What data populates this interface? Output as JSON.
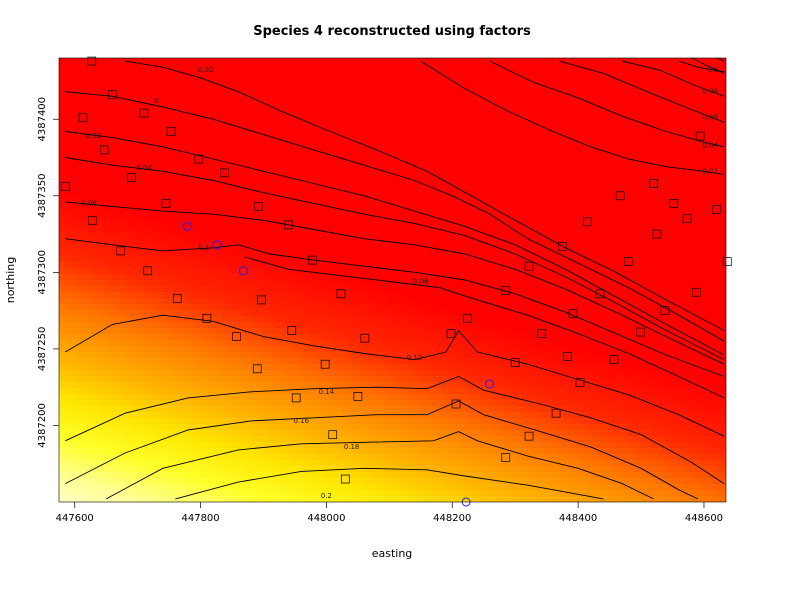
{
  "chart_data": {
    "type": "heatmap",
    "title": "Species 4 reconstructed using factors",
    "xlabel": "easting",
    "ylabel": "northing",
    "xlim": [
      447575,
      448635
    ],
    "ylim": [
      4387150,
      4387440
    ],
    "xticks": [
      447600,
      447800,
      448000,
      448200,
      448400,
      448600
    ],
    "yticks": [
      4387200,
      4387250,
      4387300,
      4387350,
      4387400
    ],
    "colors": {
      "low": "#ff0000",
      "mid": "#ffa500",
      "high": "#ffff00",
      "highest": "#ffffe0"
    },
    "contours": [
      {
        "level": "0.2",
        "points": [
          [
            447760,
            4387152
          ],
          [
            447860,
            4387163
          ],
          [
            447960,
            4387170
          ],
          [
            448060,
            4387172
          ],
          [
            448160,
            4387171
          ],
          [
            448220,
            4387167
          ],
          [
            448320,
            4387161
          ],
          [
            448400,
            4387155
          ],
          [
            448440,
            4387152
          ]
        ],
        "label_at": [
          448000,
          4387154
        ]
      },
      {
        "level": "0.18",
        "points": [
          [
            447650,
            4387152
          ],
          [
            447740,
            4387172
          ],
          [
            447860,
            4387184
          ],
          [
            447960,
            4387188
          ],
          [
            448060,
            4387189
          ],
          [
            448170,
            4387190
          ],
          [
            448210,
            4387196
          ],
          [
            448240,
            4387190
          ],
          [
            448320,
            4387180
          ],
          [
            448400,
            4387172
          ],
          [
            448470,
            4387162
          ],
          [
            448520,
            4387152
          ]
        ],
        "label_at": [
          448040,
          4387186
        ]
      },
      {
        "level": "0.16",
        "points": [
          [
            447585,
            4387162
          ],
          [
            447680,
            4387182
          ],
          [
            447780,
            4387197
          ],
          [
            447880,
            4387203
          ],
          [
            447980,
            4387205
          ],
          [
            448080,
            4387207
          ],
          [
            448160,
            4387207
          ],
          [
            448210,
            4387216
          ],
          [
            448250,
            4387207
          ],
          [
            448340,
            4387196
          ],
          [
            448420,
            4387186
          ],
          [
            448500,
            4387172
          ],
          [
            448560,
            4387158
          ],
          [
            448590,
            4387152
          ]
        ],
        "label_at": [
          447960,
          4387203
        ]
      },
      {
        "level": "0.14",
        "points": [
          [
            447585,
            4387190
          ],
          [
            447680,
            4387208
          ],
          [
            447780,
            4387218
          ],
          [
            447880,
            4387222
          ],
          [
            447980,
            4387224
          ],
          [
            448080,
            4387225
          ],
          [
            448160,
            4387224
          ],
          [
            448210,
            4387232
          ],
          [
            448250,
            4387223
          ],
          [
            448340,
            4387214
          ],
          [
            448420,
            4387205
          ],
          [
            448500,
            4387194
          ],
          [
            448580,
            4387176
          ],
          [
            448632,
            4387162
          ]
        ],
        "label_at": [
          448000,
          4387222
        ]
      },
      {
        "level": "0.12",
        "points": [
          [
            447585,
            4387248
          ],
          [
            447660,
            4387266
          ],
          [
            447740,
            4387272
          ],
          [
            447820,
            4387268
          ],
          [
            447900,
            4387258
          ],
          [
            447980,
            4387252
          ],
          [
            448060,
            4387247
          ],
          [
            448140,
            4387243
          ],
          [
            448190,
            4387248
          ],
          [
            448210,
            4387262
          ],
          [
            448240,
            4387248
          ],
          [
            448320,
            4387240
          ],
          [
            448400,
            4387230
          ],
          [
            448480,
            4387220
          ],
          [
            448560,
            4387207
          ],
          [
            448632,
            4387193
          ]
        ],
        "label_at": [
          448140,
          4387244
        ]
      },
      {
        "level": "0.06",
        "points": [
          [
            447870,
            4387310
          ],
          [
            447940,
            4387302
          ],
          [
            448020,
            4387298
          ],
          [
            448100,
            4387294
          ],
          [
            448180,
            4387290
          ],
          [
            448240,
            4387282
          ],
          [
            448320,
            4387272
          ],
          [
            448400,
            4387260
          ],
          [
            448480,
            4387247
          ],
          [
            448560,
            4387232
          ],
          [
            448632,
            4387218
          ]
        ],
        "label_at": [
          448150,
          4387294
        ]
      },
      {
        "level": "0.1",
        "points": [
          [
            447585,
            4387322
          ],
          [
            447660,
            4387318
          ],
          [
            447740,
            4387314
          ],
          [
            447820,
            4387316
          ],
          [
            447860,
            4387318
          ],
          [
            447910,
            4387312
          ],
          [
            447980,
            4387308
          ],
          [
            448060,
            4387304
          ],
          [
            448140,
            4387300
          ],
          [
            448220,
            4387295
          ],
          [
            448300,
            4387286
          ],
          [
            448380,
            4387274
          ],
          [
            448460,
            4387260
          ],
          [
            448540,
            4387246
          ],
          [
            448632,
            4387232
          ]
        ],
        "label_at": [
          447805,
          4387316
        ]
      },
      {
        "level": "0.08",
        "points": [
          [
            447585,
            4387346
          ],
          [
            447660,
            4387343
          ],
          [
            447740,
            4387340
          ],
          [
            447820,
            4387338
          ],
          [
            447900,
            4387334
          ],
          [
            447980,
            4387328
          ],
          [
            448060,
            4387322
          ],
          [
            448140,
            4387318
          ],
          [
            448220,
            4387312
          ],
          [
            448300,
            4387302
          ],
          [
            448380,
            4387289
          ],
          [
            448460,
            4387274
          ],
          [
            448540,
            4387258
          ],
          [
            448632,
            4387240
          ]
        ],
        "label_at": [
          447623,
          4387345
        ]
      },
      {
        "level": "0.04",
        "points": [
          [
            447585,
            4387375
          ],
          [
            447660,
            4387370
          ],
          [
            447740,
            4387366
          ],
          [
            447820,
            4387360
          ],
          [
            447900,
            4387352
          ],
          [
            447980,
            4387345
          ],
          [
            448060,
            4387338
          ],
          [
            448140,
            4387332
          ],
          [
            448220,
            4387324
          ],
          [
            448300,
            4387312
          ],
          [
            448380,
            4387297
          ],
          [
            448460,
            4387280
          ],
          [
            448540,
            4387262
          ],
          [
            448632,
            4387243
          ]
        ],
        "label_at": [
          447710,
          4387368
        ]
      },
      {
        "level": "0.02",
        "points": [
          [
            447585,
            4387392
          ],
          [
            447660,
            4387388
          ],
          [
            447740,
            4387382
          ],
          [
            447820,
            4387374
          ],
          [
            447900,
            4387366
          ],
          [
            447980,
            4387358
          ],
          [
            448060,
            4387350
          ],
          [
            448140,
            4387340
          ],
          [
            448220,
            4387330
          ],
          [
            448300,
            4387318
          ],
          [
            448380,
            4387302
          ],
          [
            448460,
            4387284
          ],
          [
            448540,
            4387266
          ],
          [
            448632,
            4387246
          ]
        ],
        "label_at": [
          447630,
          4387389
        ]
      },
      {
        "level": "0",
        "points": [
          [
            447585,
            4387418
          ],
          [
            447660,
            4387415
          ],
          [
            447740,
            4387408
          ],
          [
            447820,
            4387400
          ],
          [
            447900,
            4387390
          ],
          [
            447980,
            4387380
          ],
          [
            448060,
            4387370
          ],
          [
            448140,
            4387360
          ],
          [
            448200,
            4387350
          ],
          [
            448260,
            4387338
          ],
          [
            448320,
            4387322
          ],
          [
            448400,
            4387306
          ],
          [
            448480,
            4387290
          ],
          [
            448560,
            4387272
          ],
          [
            448632,
            4387255
          ]
        ],
        "label_at": [
          447730,
          4387412
        ]
      },
      {
        "level": "0.02",
        "points": [
          [
            447680,
            4387438
          ],
          [
            447740,
            4387434
          ],
          [
            447800,
            4387427
          ],
          [
            447860,
            4387418
          ],
          [
            447930,
            4387405
          ],
          [
            448000,
            4387393
          ],
          [
            448080,
            4387380
          ],
          [
            448160,
            4387366
          ],
          [
            448230,
            4387350
          ],
          [
            448300,
            4387334
          ],
          [
            448380,
            4387316
          ],
          [
            448460,
            4387300
          ],
          [
            448540,
            4387282
          ],
          [
            448632,
            4387262
          ]
        ],
        "label_at": [
          447808,
          4387432
        ]
      },
      {
        "level": "0.02",
        "points": [
          [
            448150,
            4387438
          ],
          [
            448220,
            4387420
          ],
          [
            448290,
            4387405
          ],
          [
            448360,
            4387392
          ],
          [
            448420,
            4387382
          ],
          [
            448480,
            4387374
          ],
          [
            448540,
            4387369
          ],
          [
            448600,
            4387366
          ],
          [
            448632,
            4387364
          ]
        ],
        "label_at": [
          448610,
          4387366
        ]
      },
      {
        "level": "0.04",
        "points": [
          [
            448260,
            4387438
          ],
          [
            448330,
            4387424
          ],
          [
            448400,
            4387414
          ],
          [
            448470,
            4387402
          ],
          [
            448540,
            4387392
          ],
          [
            448600,
            4387385
          ],
          [
            448632,
            4387382
          ]
        ],
        "label_at": [
          448610,
          4387383
        ]
      },
      {
        "level": "0.06",
        "points": [
          [
            448370,
            4387438
          ],
          [
            448440,
            4387430
          ],
          [
            448510,
            4387418
          ],
          [
            448570,
            4387408
          ],
          [
            448632,
            4387398
          ]
        ],
        "label_at": [
          448610,
          4387401
        ]
      },
      {
        "level": "0.08",
        "points": [
          [
            448470,
            4387438
          ],
          [
            448530,
            4387432
          ],
          [
            448580,
            4387423
          ],
          [
            448632,
            4387415
          ]
        ],
        "label_at": [
          448610,
          4387418
        ]
      },
      {
        "level": "0.1",
        "points": [
          [
            448560,
            4387438
          ],
          [
            448590,
            4387434
          ],
          [
            448632,
            4387431
          ]
        ],
        "label_at": [
          448615,
          4387432
        ]
      },
      {
        "level": "",
        "points": [
          [
            448580,
            4387440
          ],
          [
            448600,
            4387436
          ],
          [
            448632,
            4387430
          ]
        ],
        "label_at": null
      },
      {
        "level": "",
        "points": [
          [
            448620,
            4387440
          ],
          [
            448632,
            4387438
          ]
        ],
        "label_at": null
      }
    ],
    "sites_square": [
      [
        447627,
        4387438
      ],
      [
        447660,
        4387416
      ],
      [
        447613,
        4387401
      ],
      [
        447710,
        4387404
      ],
      [
        447753,
        4387392
      ],
      [
        447647,
        4387380
      ],
      [
        447797,
        4387374
      ],
      [
        447838,
        4387365
      ],
      [
        447690,
        4387362
      ],
      [
        447585,
        4387356
      ],
      [
        447745,
        4387345
      ],
      [
        447892,
        4387343
      ],
      [
        447628,
        4387334
      ],
      [
        447940,
        4387331
      ],
      [
        447673,
        4387314
      ],
      [
        447716,
        4387301
      ],
      [
        447978,
        4387308
      ],
      [
        447763,
        4387283
      ],
      [
        447810,
        4387270
      ],
      [
        447897,
        4387282
      ],
      [
        448023,
        4387286
      ],
      [
        447857,
        4387258
      ],
      [
        447945,
        4387262
      ],
      [
        448061,
        4387257
      ],
      [
        447890,
        4387237
      ],
      [
        447998,
        4387240
      ],
      [
        447952,
        4387218
      ],
      [
        448050,
        4387219
      ],
      [
        448206,
        4387214
      ],
      [
        448010,
        4387194
      ],
      [
        448030,
        4387165
      ],
      [
        448285,
        4387179
      ],
      [
        448322,
        4387193
      ],
      [
        448365,
        4387208
      ],
      [
        448403,
        4387228
      ],
      [
        448300,
        4387241
      ],
      [
        448342,
        4387260
      ],
      [
        448383,
        4387245
      ],
      [
        448392,
        4387273
      ],
      [
        448457,
        4387243
      ],
      [
        448499,
        4387261
      ],
      [
        448538,
        4387275
      ],
      [
        448435,
        4387286
      ],
      [
        448480,
        4387307
      ],
      [
        448525,
        4387325
      ],
      [
        448552,
        4387345
      ],
      [
        448573,
        4387335
      ],
      [
        448588,
        4387287
      ],
      [
        448620,
        4387341
      ],
      [
        448637,
        4387307
      ],
      [
        448594,
        4387389
      ],
      [
        448520,
        4387358
      ],
      [
        448467,
        4387350
      ],
      [
        448415,
        4387333
      ],
      [
        448375,
        4387317
      ],
      [
        448322,
        4387304
      ],
      [
        448285,
        4387288
      ],
      [
        448224,
        4387270
      ],
      [
        448198,
        4387260
      ]
    ],
    "sites_circle": [
      [
        447779,
        4387330
      ],
      [
        447826,
        4387318
      ],
      [
        447868,
        4387301
      ],
      [
        448259,
        4387227
      ],
      [
        448222,
        4387150
      ]
    ]
  }
}
